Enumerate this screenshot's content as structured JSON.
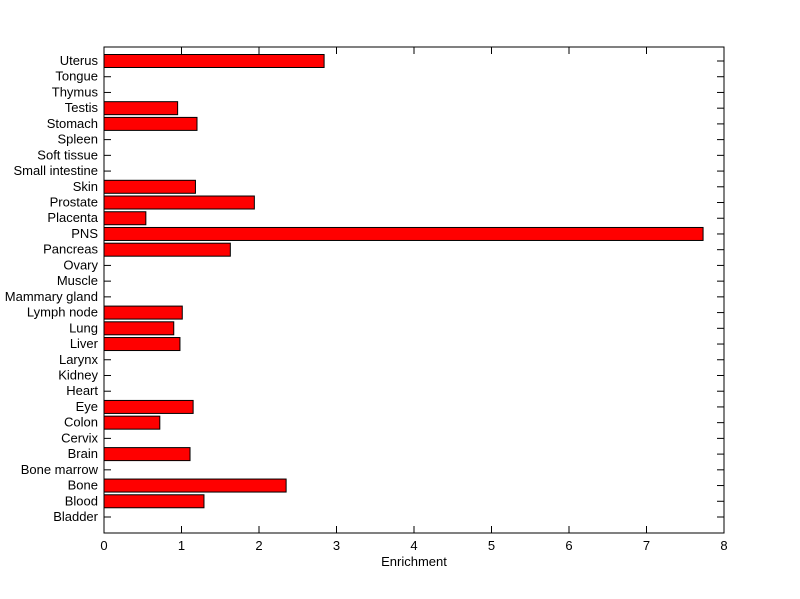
{
  "figure": {
    "background_color": "#FFFFFF"
  },
  "chart_data": {
    "type": "bar",
    "orientation": "horizontal",
    "title": "",
    "xlabel": "Enrichment",
    "ylabel": "",
    "xlim": [
      0,
      8
    ],
    "xticks": [
      "0",
      "1",
      "2",
      "3",
      "4",
      "5",
      "6",
      "7",
      "8"
    ],
    "grid": false,
    "legend": "none",
    "box": true,
    "bar_color": "#FF0000",
    "bar_edge_color": "#000000",
    "axis_color": "#000000",
    "text_color": "#000000",
    "categories": [
      "Uterus",
      "Tongue",
      "Thymus",
      "Testis",
      "Stomach",
      "Spleen",
      "Soft tissue",
      "Small intestine",
      "Skin",
      "Prostate",
      "Placenta",
      "PNS",
      "Pancreas",
      "Ovary",
      "Muscle",
      "Mammary gland",
      "Lymph node",
      "Lung",
      "Liver",
      "Larynx",
      "Kidney",
      "Heart",
      "Eye",
      "Colon",
      "Cervix",
      "Brain",
      "Bone marrow",
      "Bone",
      "Blood",
      "Bladder"
    ],
    "values": [
      2.84,
      0,
      0,
      0.95,
      1.2,
      0,
      0,
      0,
      1.18,
      1.94,
      0.54,
      7.73,
      1.63,
      0,
      0,
      0,
      1.01,
      0.9,
      0.98,
      0,
      0,
      0,
      1.15,
      0.72,
      0,
      1.11,
      0,
      2.35,
      1.29,
      0
    ]
  }
}
